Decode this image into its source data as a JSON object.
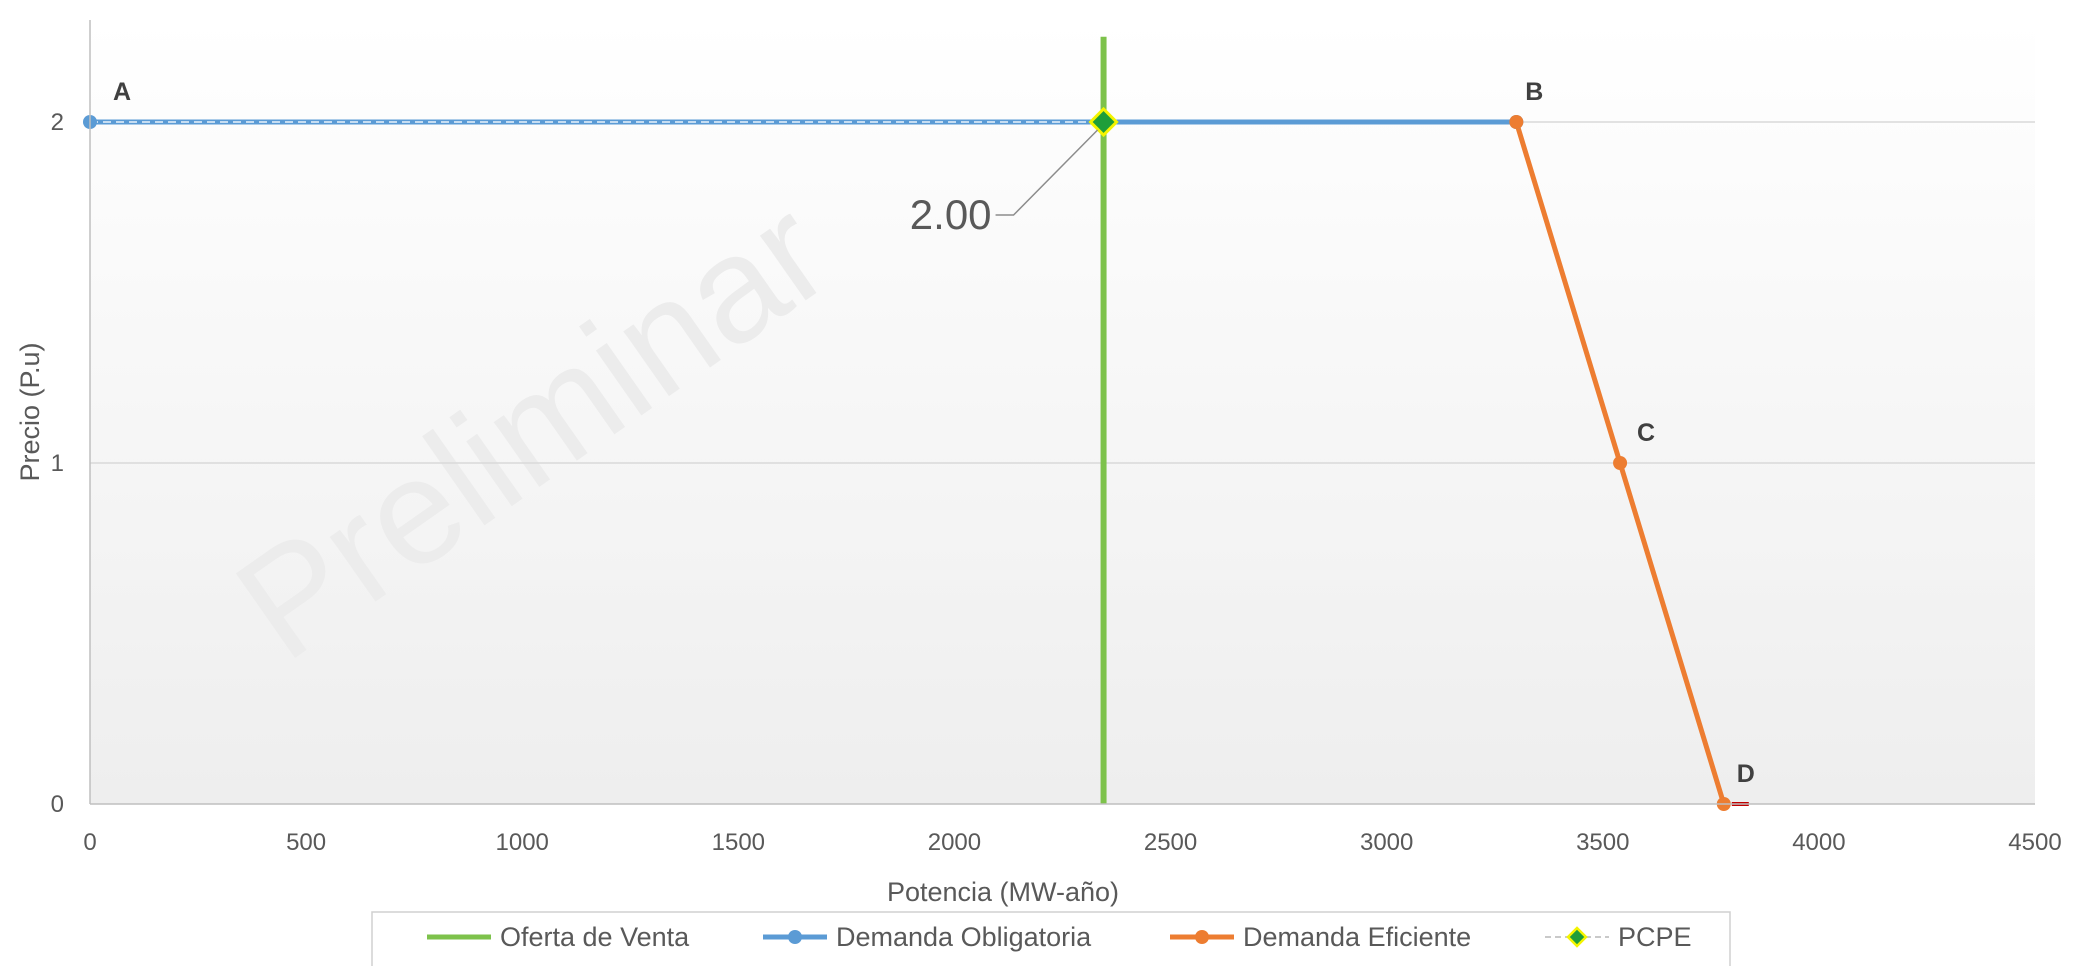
{
  "colors": {
    "oferta": "#7dc24b",
    "obligatoria": "#5b9bd5",
    "eficiente": "#ed7d31",
    "pcpe_fill": "#1e9e3a",
    "pcpe_border": "#f4f400",
    "grid": "#d9d9d9",
    "axis_text": "#595959",
    "watermark": "#ececec",
    "point_label": "#404040"
  },
  "watermark": "Preliminar",
  "chart_data": {
    "type": "line",
    "xlabel": "Potencia  (MW-año)",
    "ylabel": "Precio  (P.u)",
    "xlim": [
      0,
      4500
    ],
    "ylim": [
      0,
      2.3
    ],
    "x_ticks": [
      0,
      500,
      1000,
      1500,
      2000,
      2500,
      3000,
      3500,
      4000,
      4500
    ],
    "y_ticks": [
      0,
      1,
      2
    ],
    "grid": "horizontal",
    "legend_position": "bottom",
    "series": [
      {
        "name": "Oferta de Venta",
        "color": "#7dc24b",
        "marker": "none",
        "points": [
          [
            2345,
            0
          ],
          [
            2345,
            2.25
          ]
        ]
      },
      {
        "name": "Demanda Obligatoria",
        "color": "#5b9bd5",
        "marker": "circle",
        "points": [
          [
            0,
            2
          ],
          [
            3300,
            2
          ]
        ]
      },
      {
        "name": "Demanda Eficiente",
        "color": "#ed7d31",
        "marker": "circle",
        "points": [
          [
            3300,
            2
          ],
          [
            3540,
            1
          ],
          [
            3780,
            0
          ]
        ]
      },
      {
        "name": "PCPE",
        "color": "#1e9e3a",
        "marker": "diamond",
        "line": "dashed",
        "points": [
          [
            0,
            2
          ],
          [
            2345,
            2
          ]
        ]
      }
    ],
    "point_labels": [
      {
        "text": "A",
        "x": 0,
        "y": 2
      },
      {
        "text": "B",
        "x": 3300,
        "y": 2
      },
      {
        "text": "C",
        "x": 3540,
        "y": 1
      },
      {
        "text": "D",
        "x": 3780,
        "y": 0
      }
    ],
    "annotations": [
      {
        "text": "2.00",
        "x": 2345,
        "y": 2
      }
    ]
  }
}
